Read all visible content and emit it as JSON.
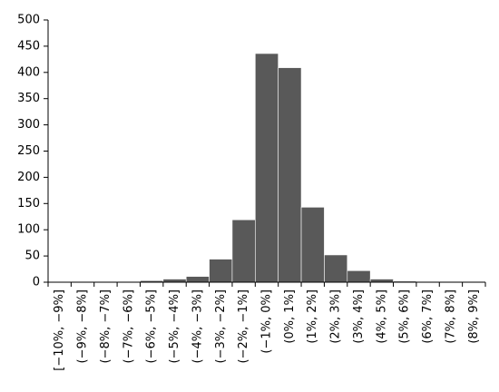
{
  "chart_data": {
    "type": "bar",
    "categories": [
      "[−10%, −9%]",
      "(−9%, −8%]",
      "(−8%, −7%]",
      "(−7%, −6%]",
      "(−6%, −5%]",
      "(−5%, −4%]",
      "(−4%, −3%]",
      "(−3%, −2%]",
      "(−2%, −1%]",
      "(−1%, 0%]",
      "(0%, 1%]",
      "(1%, 2%]",
      "(2%, 3%]",
      "(3%, 4%]",
      "(4%, 5%]",
      "(5%, 6%]",
      "(6%, 7%]",
      "(7%, 8%]",
      "(8%, 9%]"
    ],
    "values": [
      0,
      1,
      1,
      1,
      3,
      6,
      11,
      44,
      119,
      436,
      409,
      143,
      52,
      22,
      6,
      2,
      1,
      1,
      1
    ],
    "color": "#595959",
    "ylim": [
      0,
      500
    ],
    "yticks": [
      0,
      50,
      100,
      150,
      200,
      250,
      300,
      350,
      400,
      450,
      500
    ]
  }
}
